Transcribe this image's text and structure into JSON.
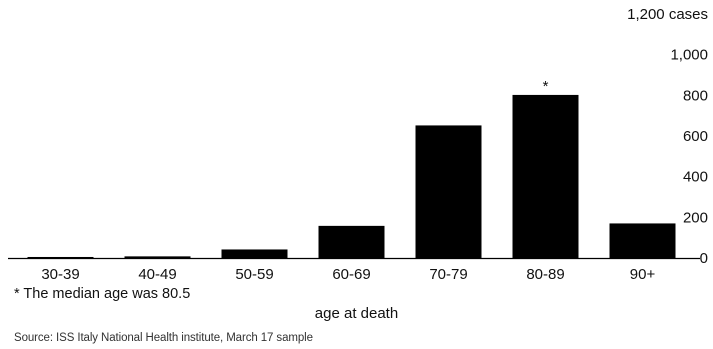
{
  "chart_data": {
    "type": "bar",
    "categories": [
      "30-39",
      "40-49",
      "50-59",
      "60-69",
      "70-79",
      "80-89",
      "90+"
    ],
    "values": [
      5,
      8,
      42,
      158,
      652,
      802,
      170
    ],
    "ylim": [
      0,
      1200
    ],
    "yticks": [
      {
        "value": 1200,
        "label": "1,200 cases"
      },
      {
        "value": 1000,
        "label": "1,000"
      },
      {
        "value": 800,
        "label": "800"
      },
      {
        "value": 600,
        "label": "600"
      },
      {
        "value": 400,
        "label": "400"
      },
      {
        "value": 200,
        "label": "200"
      },
      {
        "value": 0,
        "label": "0"
      }
    ],
    "y_axis_position": "right",
    "grid": false,
    "bar_color": "#000000",
    "annotation": {
      "category": "80-89",
      "text": "*"
    },
    "xlabel": "age at death",
    "footnote": "* The median age was 80.5",
    "source": "Source: ISS Italy National Health institute, March 17 sample"
  }
}
